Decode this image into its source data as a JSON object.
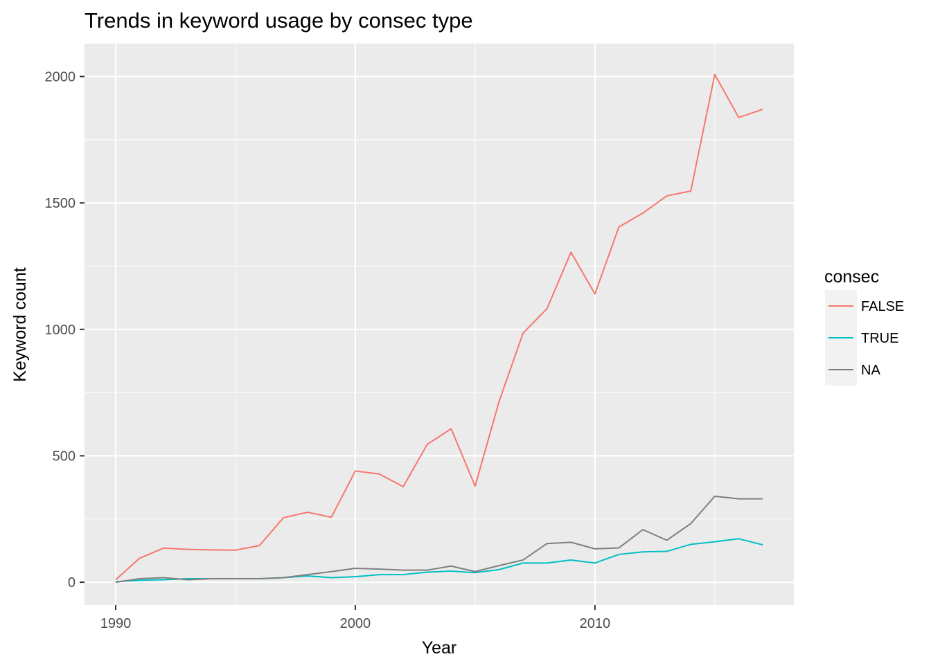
{
  "chart_data": {
    "type": "line",
    "title": "Trends in keyword usage by consec type",
    "xlabel": "Year",
    "ylabel": "Keyword count",
    "xlim": [
      1988.7,
      2018.3
    ],
    "ylim": [
      -90,
      2130
    ],
    "x_ticks": [
      1990,
      2000,
      2010
    ],
    "y_ticks": [
      0,
      500,
      1000,
      1500,
      2000
    ],
    "x_tick_labels": [
      "1990",
      "2000",
      "2010"
    ],
    "y_tick_labels": [
      "0",
      "500",
      "1000",
      "1500",
      "2000"
    ],
    "grid": true,
    "legend": {
      "title": "consec",
      "position": "right"
    },
    "x": [
      1990,
      1991,
      1992,
      1993,
      1994,
      1995,
      1996,
      1997,
      1998,
      1999,
      2000,
      2001,
      2002,
      2003,
      2004,
      2005,
      2006,
      2007,
      2008,
      2009,
      2010,
      2011,
      2012,
      2013,
      2014,
      2015,
      2016,
      2017
    ],
    "series": [
      {
        "name": "FALSE",
        "color": "#F8766D",
        "values": [
          10,
          95,
          135,
          130,
          128,
          127,
          145,
          255,
          277,
          257,
          440,
          428,
          378,
          545,
          607,
          380,
          715,
          985,
          1082,
          1305,
          1140,
          1405,
          1460,
          1528,
          1547,
          2008,
          1838,
          1870
        ]
      },
      {
        "name": "TRUE",
        "color": "#00BFC4",
        "values": [
          2,
          8,
          10,
          14,
          14,
          14,
          14,
          18,
          25,
          18,
          22,
          30,
          30,
          40,
          44,
          38,
          50,
          76,
          76,
          88,
          76,
          110,
          120,
          122,
          150,
          160,
          172,
          148
        ]
      },
      {
        "name": "NA",
        "color": "#7F7F7F",
        "values": [
          0,
          14,
          18,
          10,
          14,
          14,
          14,
          18,
          30,
          42,
          55,
          52,
          48,
          48,
          64,
          42,
          66,
          88,
          153,
          158,
          132,
          136,
          208,
          166,
          232,
          340,
          330,
          330
        ]
      }
    ]
  }
}
